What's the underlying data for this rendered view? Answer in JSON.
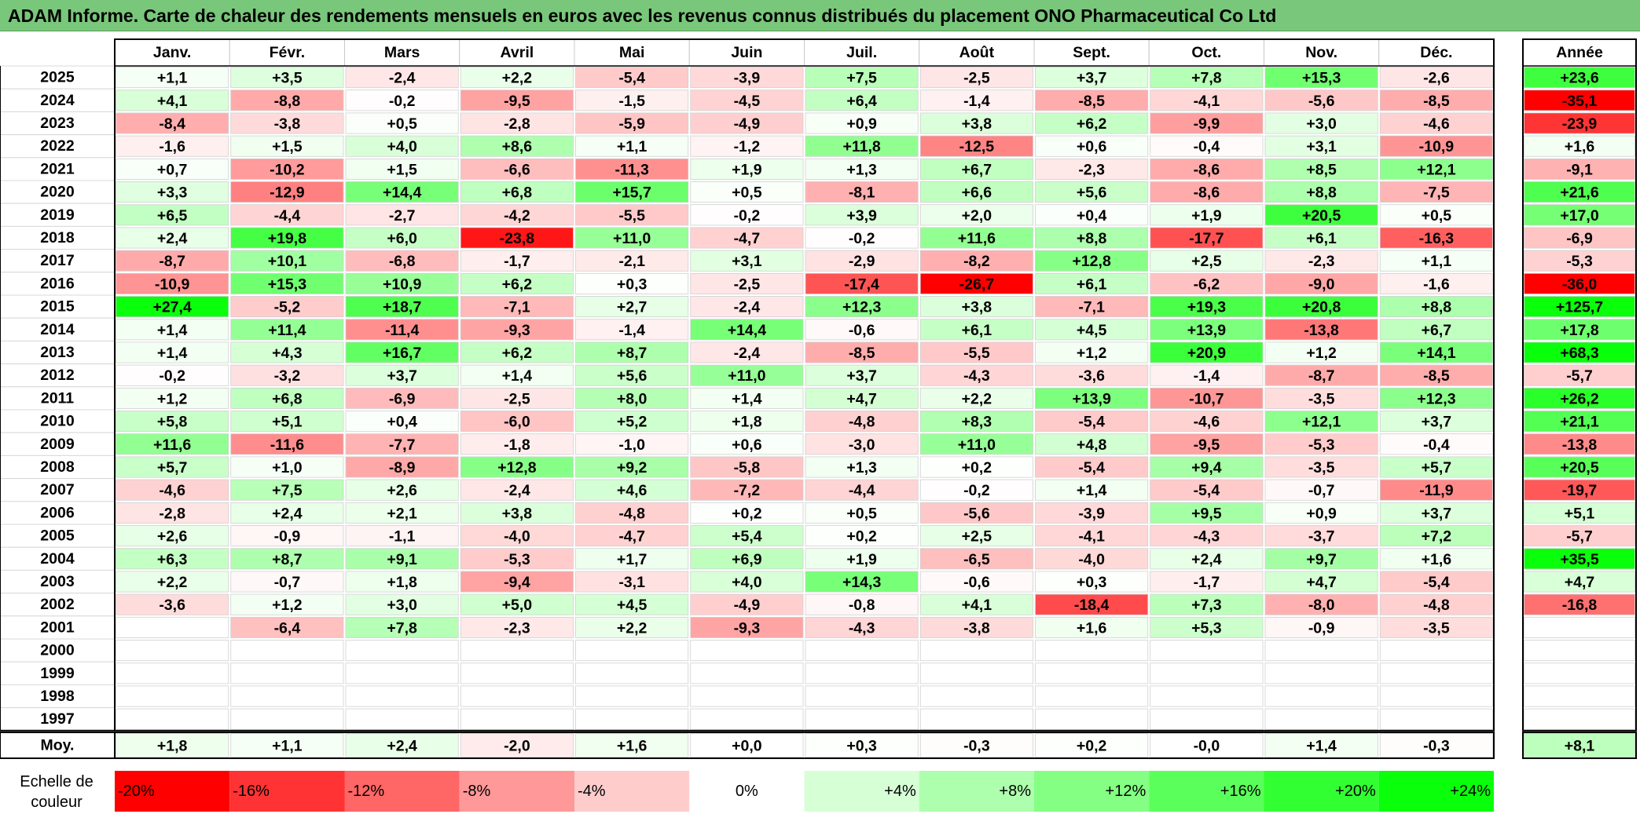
{
  "title": "ADAM Informe. Carte de chaleur des rendements mensuels en euros avec les revenus connus distribués du placement ONO Pharmaceutical Co Ltd",
  "chart_data": {
    "type": "heatmap",
    "months": [
      "Janv.",
      "Févr.",
      "Mars",
      "Avril",
      "Mai",
      "Juin",
      "Juil.",
      "Août",
      "Sept.",
      "Oct.",
      "Nov.",
      "Déc."
    ],
    "year_header": "Année",
    "avg_label": "Moy.",
    "rows": [
      {
        "year": "2025",
        "values": [
          1.1,
          3.5,
          -2.4,
          2.2,
          -5.4,
          -3.9,
          7.5,
          -2.5,
          3.7,
          7.8,
          15.3,
          -2.6
        ],
        "annual": 23.6
      },
      {
        "year": "2024",
        "values": [
          4.1,
          -8.8,
          -0.2,
          -9.5,
          -1.5,
          -4.5,
          6.4,
          -1.4,
          -8.5,
          -4.1,
          -5.6,
          -8.5
        ],
        "annual": -35.1
      },
      {
        "year": "2023",
        "values": [
          -8.4,
          -3.8,
          0.5,
          -2.8,
          -5.9,
          -4.9,
          0.9,
          3.8,
          6.2,
          -9.9,
          3.0,
          -4.6
        ],
        "annual": -23.9
      },
      {
        "year": "2022",
        "values": [
          -1.6,
          1.5,
          4.0,
          8.6,
          1.1,
          -1.2,
          11.8,
          -12.5,
          0.6,
          -0.4,
          3.1,
          -10.9
        ],
        "annual": 1.6
      },
      {
        "year": "2021",
        "values": [
          0.7,
          -10.2,
          1.5,
          -6.6,
          -11.3,
          1.9,
          1.3,
          6.7,
          -2.3,
          -8.6,
          8.5,
          12.1
        ],
        "annual": -9.1
      },
      {
        "year": "2020",
        "values": [
          3.3,
          -12.9,
          14.4,
          6.8,
          15.7,
          0.5,
          -8.1,
          6.6,
          5.6,
          -8.6,
          8.8,
          -7.5
        ],
        "annual": 21.6
      },
      {
        "year": "2019",
        "values": [
          6.5,
          -4.4,
          -2.7,
          -4.2,
          -5.5,
          -0.2,
          3.9,
          2.0,
          0.4,
          1.9,
          20.5,
          0.5
        ],
        "annual": 17.0
      },
      {
        "year": "2018",
        "values": [
          2.4,
          19.8,
          6.0,
          -23.8,
          11.0,
          -4.7,
          -0.2,
          11.6,
          8.8,
          -17.7,
          6.1,
          -16.3
        ],
        "annual": -6.9
      },
      {
        "year": "2017",
        "values": [
          -8.7,
          10.1,
          -6.8,
          -1.7,
          -2.1,
          3.1,
          -2.9,
          -8.2,
          12.8,
          2.5,
          -2.3,
          1.1
        ],
        "annual": -5.3
      },
      {
        "year": "2016",
        "values": [
          -10.9,
          15.3,
          10.9,
          6.2,
          0.3,
          -2.5,
          -17.4,
          -26.7,
          6.1,
          -6.2,
          -9.0,
          -1.6
        ],
        "annual": -36.0
      },
      {
        "year": "2015",
        "values": [
          27.4,
          -5.2,
          18.7,
          -7.1,
          2.7,
          -2.4,
          12.3,
          3.8,
          -7.1,
          19.3,
          20.8,
          8.8
        ],
        "annual": 125.7
      },
      {
        "year": "2014",
        "values": [
          1.4,
          11.4,
          -11.4,
          -9.3,
          -1.4,
          14.4,
          -0.6,
          6.1,
          4.5,
          13.9,
          -13.8,
          6.7
        ],
        "annual": 17.8
      },
      {
        "year": "2013",
        "values": [
          1.4,
          4.3,
          16.7,
          6.2,
          8.7,
          -2.4,
          -8.5,
          -5.5,
          1.2,
          20.9,
          1.2,
          14.1
        ],
        "annual": 68.3
      },
      {
        "year": "2012",
        "values": [
          -0.2,
          -3.2,
          3.7,
          1.4,
          5.6,
          11.0,
          3.7,
          -4.3,
          -3.6,
          -1.4,
          -8.7,
          -8.5
        ],
        "annual": -5.7
      },
      {
        "year": "2011",
        "values": [
          1.2,
          6.8,
          -6.9,
          -2.5,
          8.0,
          1.4,
          4.7,
          2.2,
          13.9,
          -10.7,
          -3.5,
          12.3
        ],
        "annual": 26.2
      },
      {
        "year": "2010",
        "values": [
          5.8,
          5.1,
          0.4,
          -6.0,
          5.2,
          1.8,
          -4.8,
          8.3,
          -5.4,
          -4.6,
          12.1,
          3.7
        ],
        "annual": 21.1
      },
      {
        "year": "2009",
        "values": [
          11.6,
          -11.6,
          -7.7,
          -1.8,
          -1.0,
          0.6,
          -3.0,
          11.0,
          4.8,
          -9.5,
          -5.3,
          -0.4
        ],
        "annual": -13.8
      },
      {
        "year": "2008",
        "values": [
          5.7,
          1.0,
          -8.9,
          12.8,
          9.2,
          -5.8,
          1.3,
          0.2,
          -5.4,
          9.4,
          -3.5,
          5.7
        ],
        "annual": 20.5
      },
      {
        "year": "2007",
        "values": [
          -4.6,
          7.5,
          2.6,
          -2.4,
          4.6,
          -7.2,
          -4.4,
          -0.2,
          1.4,
          -5.4,
          -0.7,
          -11.9
        ],
        "annual": -19.7
      },
      {
        "year": "2006",
        "values": [
          -2.8,
          2.4,
          2.1,
          3.8,
          -4.8,
          0.2,
          0.5,
          -5.6,
          -3.9,
          9.5,
          0.9,
          3.7
        ],
        "annual": 5.1
      },
      {
        "year": "2005",
        "values": [
          2.6,
          -0.9,
          -1.1,
          -4.0,
          -4.7,
          5.4,
          0.2,
          2.5,
          -4.1,
          -4.3,
          -3.7,
          7.2
        ],
        "annual": -5.7
      },
      {
        "year": "2004",
        "values": [
          6.3,
          8.7,
          9.1,
          -5.3,
          1.7,
          6.9,
          1.9,
          -6.5,
          -4.0,
          2.4,
          9.7,
          1.6
        ],
        "annual": 35.5
      },
      {
        "year": "2003",
        "values": [
          2.2,
          -0.7,
          1.8,
          -9.4,
          -3.1,
          4.0,
          14.3,
          -0.6,
          0.3,
          -1.7,
          4.7,
          -5.4
        ],
        "annual": 4.7
      },
      {
        "year": "2002",
        "values": [
          -3.6,
          1.2,
          3.0,
          5.0,
          4.5,
          -4.9,
          -0.8,
          4.1,
          -18.4,
          7.3,
          -8.0,
          -4.8
        ],
        "annual": -16.8
      },
      {
        "year": "2001",
        "values": [
          null,
          -6.4,
          7.8,
          -2.3,
          2.2,
          -9.3,
          -4.3,
          -3.8,
          1.6,
          5.3,
          -0.9,
          -3.5
        ],
        "annual": null
      },
      {
        "year": "2000",
        "values": [
          null,
          null,
          null,
          null,
          null,
          null,
          null,
          null,
          null,
          null,
          null,
          null
        ],
        "annual": null
      },
      {
        "year": "1999",
        "values": [
          null,
          null,
          null,
          null,
          null,
          null,
          null,
          null,
          null,
          null,
          null,
          null
        ],
        "annual": null
      },
      {
        "year": "1998",
        "values": [
          null,
          null,
          null,
          null,
          null,
          null,
          null,
          null,
          null,
          null,
          null,
          null
        ],
        "annual": null
      },
      {
        "year": "1997",
        "values": [
          null,
          null,
          null,
          null,
          null,
          null,
          null,
          null,
          null,
          null,
          null,
          null
        ],
        "annual": null
      }
    ],
    "average": {
      "labels": [
        "+1,8",
        "+1,1",
        "+2,4",
        "-2,0",
        "+1,6",
        "+0,0",
        "+0,3",
        "-0,3",
        "+0,2",
        "-0,0",
        "+1,4",
        "-0,3"
      ],
      "values": [
        1.8,
        1.1,
        2.4,
        -2.0,
        1.6,
        0.0,
        0.3,
        -0.3,
        0.2,
        -0.0,
        1.4,
        -0.3
      ],
      "annual_label": "+8,1",
      "annual": 8.1
    },
    "scale": {
      "label_line1": "Echelle de",
      "label_line2": "couleur",
      "stops": [
        {
          "label": "-20%",
          "value": -20,
          "color": "#ff0000"
        },
        {
          "label": "-16%",
          "value": -16,
          "color": "#ff3333"
        },
        {
          "label": "-12%",
          "value": -12,
          "color": "#ff6666"
        },
        {
          "label": "-8%",
          "value": -8,
          "color": "#ff9999"
        },
        {
          "label": "-4%",
          "value": -4,
          "color": "#ffcccc"
        },
        {
          "label": "0%",
          "value": 0,
          "color": "#ffffff"
        },
        {
          "label": "+4%",
          "value": 4,
          "color": "#d6ffd6"
        },
        {
          "label": "+8%",
          "value": 8,
          "color": "#adffad"
        },
        {
          "label": "+12%",
          "value": 12,
          "color": "#84ff84"
        },
        {
          "label": "+16%",
          "value": 16,
          "color": "#5bff5b"
        },
        {
          "label": "+20%",
          "value": 20,
          "color": "#32ff32"
        },
        {
          "label": "+24%",
          "value": 24,
          "color": "#0aff0a"
        }
      ]
    },
    "colors": {
      "title_bar": "#79c77a",
      "negative_max": "#ff0000",
      "positive_max": "#00ff00",
      "neutral": "#ffffff"
    }
  }
}
